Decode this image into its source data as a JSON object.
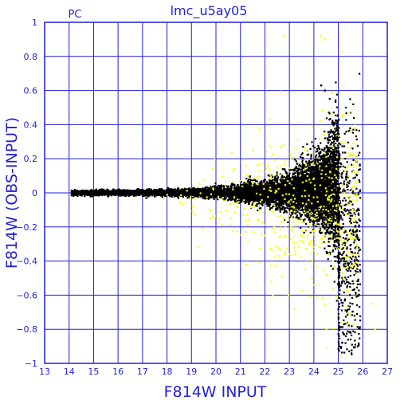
{
  "chart_data": {
    "type": "scatter",
    "title": "lmc_u5ay05",
    "corner_label": "PC",
    "xlabel": "F814W INPUT",
    "ylabel": "F814W (OBS-INPUT)",
    "xlim": [
      13,
      27
    ],
    "ylim": [
      -1,
      1
    ],
    "xticks": [
      13,
      14,
      15,
      16,
      17,
      18,
      19,
      20,
      21,
      22,
      23,
      24,
      25,
      26,
      27
    ],
    "yticks": [
      1,
      0.8,
      0.6,
      0.4,
      0.2,
      0,
      -0.2,
      -0.4,
      -0.6,
      -0.8,
      -1
    ],
    "ytick_labels": [
      "1",
      "0.8",
      "0.6",
      "0.4",
      "0.2",
      "0",
      "−0.2",
      "−0.4",
      "−0.6",
      "−0.8",
      "−1"
    ],
    "grid": true,
    "series": [
      {
        "color": "#000000",
        "approx_points": 9000,
        "x_range": [
          14.1,
          25.9
        ],
        "envelope": [
          {
            "x": 14.1,
            "sigma": 0.007
          },
          {
            "x": 17,
            "sigma": 0.008
          },
          {
            "x": 19,
            "sigma": 0.012
          },
          {
            "x": 21,
            "sigma": 0.025
          },
          {
            "x": 22,
            "sigma": 0.035
          },
          {
            "x": 23,
            "sigma": 0.055
          },
          {
            "x": 24,
            "sigma": 0.09
          },
          {
            "x": 24.5,
            "sigma": 0.13
          },
          {
            "x": 25,
            "sigma": 0.22
          },
          {
            "x": 25.9,
            "sigma": 0.35
          }
        ],
        "notable_points": [
          [
            24.3,
            0.63
          ],
          [
            24.45,
            0.6
          ],
          [
            25.5,
            -0.82
          ],
          [
            25.8,
            -0.9
          ]
        ]
      },
      {
        "color": "#ffff00",
        "approx_points": 520,
        "x_range": [
          17.5,
          26.5
        ],
        "notable_points": [
          [
            24.3,
            0.92
          ],
          [
            24.45,
            0.9
          ],
          [
            22.8,
            0.92
          ],
          [
            26.4,
            -0.65
          ],
          [
            26.5,
            -0.8
          ]
        ]
      }
    ]
  }
}
